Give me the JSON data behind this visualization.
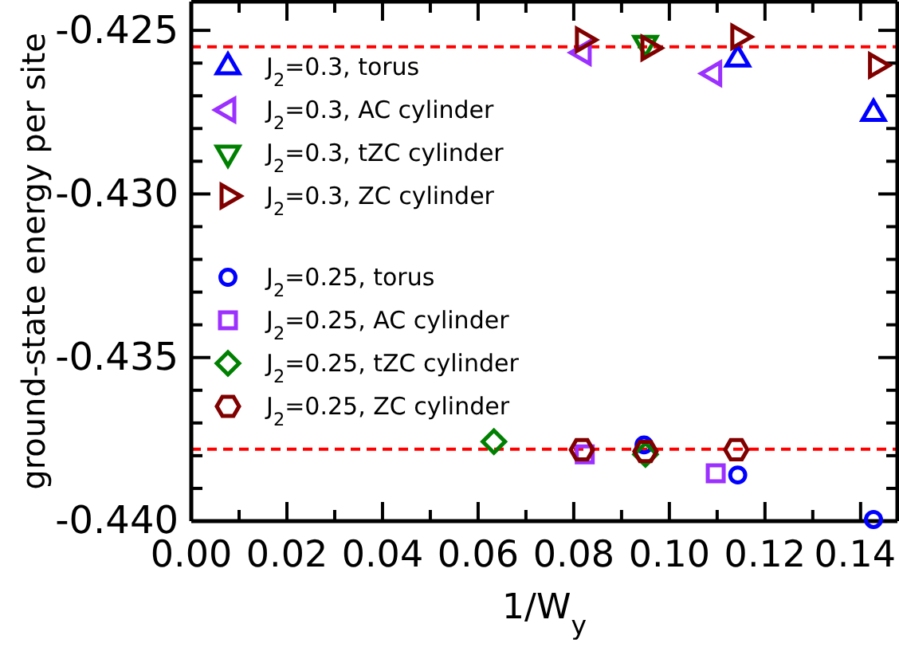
{
  "chart_data": {
    "type": "scatter",
    "xlabel": "1/W$_{y}$",
    "ylabel": "ground-state energy per site",
    "xlim": [
      0,
      0.1477
    ],
    "ylim": [
      -0.44,
      -0.42412
    ],
    "xticks": [
      {
        "value": 0,
        "label": "0.00"
      },
      {
        "value": 0.01,
        "label": null
      },
      {
        "value": 0.02,
        "label": "0.02"
      },
      {
        "value": 0.03,
        "label": null
      },
      {
        "value": 0.04,
        "label": "0.04"
      },
      {
        "value": 0.05,
        "label": null
      },
      {
        "value": 0.06,
        "label": "0.06"
      },
      {
        "value": 0.07,
        "label": null
      },
      {
        "value": 0.08,
        "label": "0.08"
      },
      {
        "value": 0.09,
        "label": null
      },
      {
        "value": 0.1,
        "label": "0.10"
      },
      {
        "value": 0.11,
        "label": null
      },
      {
        "value": 0.12,
        "label": "0.12"
      },
      {
        "value": 0.13,
        "label": null
      },
      {
        "value": 0.14,
        "label": "0.14"
      }
    ],
    "yticks": [
      {
        "value": -0.44,
        "label": "-0.440"
      },
      {
        "value": -0.439,
        "label": null
      },
      {
        "value": -0.438,
        "label": null
      },
      {
        "value": -0.437,
        "label": null
      },
      {
        "value": -0.436,
        "label": null
      },
      {
        "value": -0.435,
        "label": "-0.435"
      },
      {
        "value": -0.434,
        "label": null
      },
      {
        "value": -0.433,
        "label": null
      },
      {
        "value": -0.432,
        "label": null
      },
      {
        "value": -0.431,
        "label": null
      },
      {
        "value": -0.43,
        "label": "-0.430"
      },
      {
        "value": -0.429,
        "label": null
      },
      {
        "value": -0.428,
        "label": null
      },
      {
        "value": -0.427,
        "label": null
      },
      {
        "value": -0.426,
        "label": null
      },
      {
        "value": -0.425,
        "label": "-0.425"
      }
    ],
    "grid": false,
    "legend": "top left",
    "ref_lines": [
      {
        "axis": "y",
        "value": -0.4255,
        "color": "#ff0000",
        "line_style": "dashed"
      },
      {
        "axis": "y",
        "value": -0.4378,
        "color": "#ff0000",
        "line_style": "dashed"
      }
    ],
    "series": [
      {
        "name": "J$_{2}$=0.3, torus",
        "color": "#0000ff",
        "marker": "triangle-up",
        "x": [
          0.1143,
          0.1427
        ],
        "values": [
          -0.42588,
          -0.42754
        ]
      },
      {
        "name": "J$_{2}$=0.3, AC cylinder",
        "color": "#9b30ff",
        "marker": "triangle-left",
        "x": [
          0.082,
          0.1093
        ],
        "values": [
          -0.42568,
          -0.42632
        ]
      },
      {
        "name": "J$_{2}$=0.3, tZC cylinder",
        "color": "#008000",
        "marker": "triangle-down",
        "x": [
          0.095
        ],
        "values": [
          -0.42539
        ]
      },
      {
        "name": "J$_{2}$=0.3, ZC cylinder",
        "color": "#800000",
        "marker": "triangle-right",
        "x": [
          0.082,
          0.0957,
          0.1145,
          0.1433
        ],
        "values": [
          -0.42529,
          -0.42554,
          -0.4252,
          -0.42607
        ]
      },
      {
        "name": "J$_{2}$=0.25, torus",
        "color": "#0000ff",
        "marker": "circle",
        "x": [
          0.0947,
          0.1143,
          0.1427
        ],
        "values": [
          -0.43767,
          -0.43859,
          -0.43995
        ]
      },
      {
        "name": "J$_{2}$=0.25, AC cylinder",
        "color": "#9b30ff",
        "marker": "square",
        "x": [
          0.0823,
          0.1097
        ],
        "values": [
          -0.43796,
          -0.43854
        ]
      },
      {
        "name": "J$_{2}$=0.25, tZC cylinder",
        "color": "#008000",
        "marker": "diamond",
        "x": [
          0.0633,
          0.095
        ],
        "values": [
          -0.43757,
          -0.43796
        ]
      },
      {
        "name": "J$_{2}$=0.25, ZC cylinder",
        "color": "#800000",
        "x": [
          0.0817,
          0.095,
          0.114
        ],
        "values": [
          -0.43782,
          -0.43787,
          -0.43782
        ]
      }
    ]
  }
}
